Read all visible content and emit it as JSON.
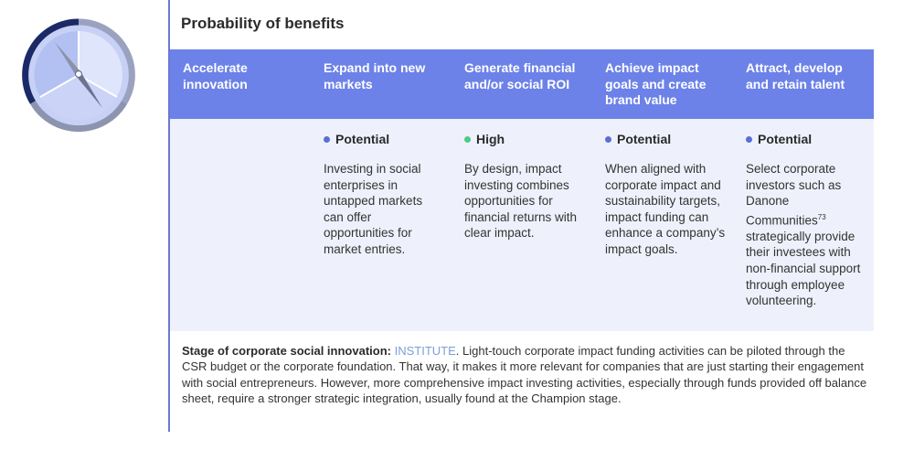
{
  "title": "Probability of benefits",
  "columns": [
    {
      "header": "Accelerate innovation",
      "rating": "",
      "rating_color": "",
      "description": ""
    },
    {
      "header": "Expand into new markets",
      "rating": "Potential",
      "rating_color": "#5b6ed6",
      "description": "Investing in social enterprises in untapped markets can offer opportunities for market entries."
    },
    {
      "header": "Generate financial and/or social ROI",
      "rating": "High",
      "rating_color": "#4ccb86",
      "description": "By design, impact investing combines opportunities for financial returns with clear impact."
    },
    {
      "header": "Achieve impact goals and create brand value",
      "rating": "Potential",
      "rating_color": "#5b6ed6",
      "description": "When aligned with corporate impact and sustainability targets, impact funding can enhance a company’s impact goals."
    },
    {
      "header": "Attract, develop and retain talent",
      "rating": "Potential",
      "rating_color": "#5b6ed6",
      "description_before": "Select corporate investors such as Danone Communities",
      "description_sup": "73",
      "description_after": " strategically provide their investees with non-financial support through employee volunteering."
    }
  ],
  "footer": {
    "label": "Stage of corporate social innovation:",
    "stage": "INSTITUTE",
    "text": ". Light-touch corporate impact funding activities can be piloted through the CSR budget or the corporate foundation. That way, it makes it more relevant for companies that are just starting their engagement with social entrepreneurs. However, more comprehensive impact investing activities, especially through funds provided off balance sheet, require a stronger strategic integration, usually found at the Champion stage."
  },
  "colors": {
    "header_bg": "#6c82e8",
    "body_bg": "#eef1fb",
    "accent_line": "#6c79d3",
    "stage_highlight": "#7b9fd8"
  },
  "icons": {
    "logo": "compass-icon"
  }
}
